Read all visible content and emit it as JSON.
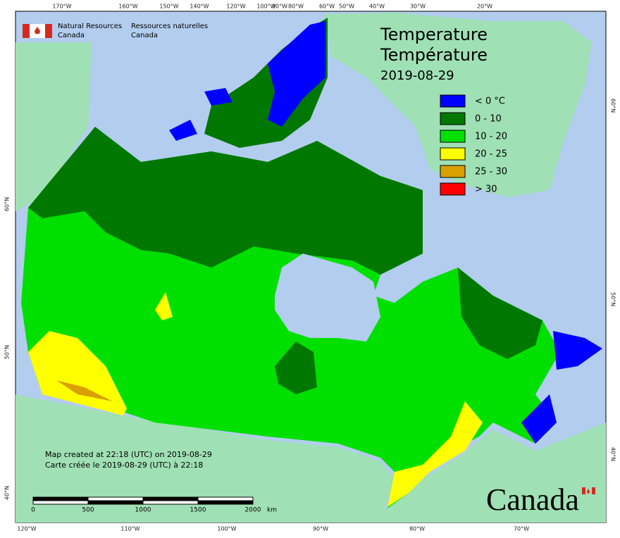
{
  "header": {
    "org_en_1": "Natural Resources",
    "org_en_2": "Canada",
    "org_fr_1": "Ressources naturelles",
    "org_fr_2": "Canada"
  },
  "title": {
    "en": "Temperature",
    "fr": "Température",
    "date": "2019-08-29"
  },
  "legend": [
    {
      "label": "< 0 °C",
      "color": "#0000ff"
    },
    {
      "label": "0 - 10",
      "color": "#007800"
    },
    {
      "label": "10 - 20",
      "color": "#00e000"
    },
    {
      "label": "20 - 25",
      "color": "#ffff00"
    },
    {
      "label": "25 - 30",
      "color": "#d9a000"
    },
    {
      "label": "> 30",
      "color": "#ff0000"
    }
  ],
  "graticule": {
    "top": [
      "170°W",
      "160°W",
      "150°W",
      "140°W",
      "120°W",
      "100°W",
      "90°W",
      "80°W",
      "60°W",
      "50°W",
      "40°W",
      "30°W",
      "20°W"
    ],
    "bottom": [
      "120°W",
      "110°W",
      "100°W",
      "90°W",
      "80°W",
      "70°W"
    ],
    "left": [
      "60°N",
      "50°N",
      "40°N"
    ],
    "right": [
      "60°N",
      "50°N",
      "40°N"
    ]
  },
  "footer": {
    "en": "Map created at 22:18 (UTC) on 2019-08-29",
    "fr": "Carte créée le 2019-08-29 (UTC) à 22:18"
  },
  "scale_bar": {
    "labels": [
      "0",
      "500",
      "1000",
      "1500",
      "2000"
    ],
    "unit": "km"
  },
  "wordmark": "Canada"
}
